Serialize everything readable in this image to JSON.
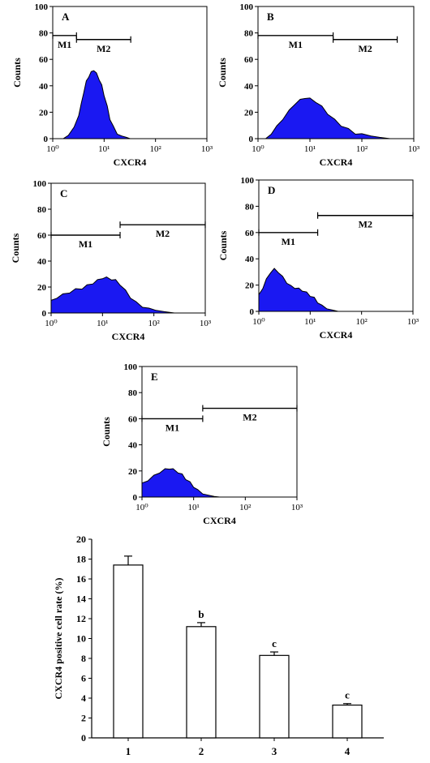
{
  "colors": {
    "fill": "#1a18f2",
    "outline": "#000000",
    "bar_fill": "#ffffff"
  },
  "chart_data": [
    {
      "type": "area",
      "panel_label": "A",
      "xlabel": "CXCR4",
      "ylabel": "Counts",
      "xscale": "log",
      "xlim": [
        1,
        1000
      ],
      "ylim": [
        0,
        100
      ],
      "x_tick_labels": [
        "10⁰",
        "10¹",
        "10²",
        "10³"
      ],
      "y_tick_labels": [
        "0",
        "20",
        "40",
        "60",
        "80",
        "100"
      ],
      "gates": [
        {
          "label": "M1",
          "start": 1,
          "end": 2.9,
          "y": 78
        },
        {
          "label": "M2",
          "start": 2.9,
          "end": 33,
          "y": 75
        }
      ],
      "histogram": [
        [
          1.6,
          0
        ],
        [
          2,
          3
        ],
        [
          2.6,
          8
        ],
        [
          3.2,
          18
        ],
        [
          3.6,
          26
        ],
        [
          4,
          35
        ],
        [
          4.5,
          43
        ],
        [
          5,
          47
        ],
        [
          5.6,
          50
        ],
        [
          6.3,
          52
        ],
        [
          7.1,
          49
        ],
        [
          8,
          45
        ],
        [
          9,
          40
        ],
        [
          10,
          33
        ],
        [
          11.5,
          24
        ],
        [
          13,
          15
        ],
        [
          15,
          9
        ],
        [
          18,
          4
        ],
        [
          22,
          2
        ],
        [
          27,
          1
        ],
        [
          32,
          0
        ]
      ]
    },
    {
      "type": "area",
      "panel_label": "B",
      "xlabel": "CXCR4",
      "ylabel": "Counts",
      "xscale": "log",
      "xlim": [
        1,
        1000
      ],
      "ylim": [
        0,
        100
      ],
      "x_tick_labels": [
        "10⁰",
        "10¹",
        "10²",
        "10³"
      ],
      "y_tick_labels": [
        "0",
        "20",
        "40",
        "60",
        "80",
        "100"
      ],
      "gates": [
        {
          "label": "M1",
          "start": 1,
          "end": 28,
          "y": 78
        },
        {
          "label": "M2",
          "start": 28,
          "end": 480,
          "y": 75
        }
      ],
      "histogram": [
        [
          1.4,
          0
        ],
        [
          1.8,
          4
        ],
        [
          2.3,
          9
        ],
        [
          3,
          15
        ],
        [
          4,
          21
        ],
        [
          5,
          26
        ],
        [
          6.5,
          29
        ],
        [
          8,
          31
        ],
        [
          10,
          30
        ],
        [
          13,
          28
        ],
        [
          17,
          24
        ],
        [
          22,
          19
        ],
        [
          30,
          14
        ],
        [
          40,
          10
        ],
        [
          55,
          7
        ],
        [
          75,
          4
        ],
        [
          100,
          3
        ],
        [
          150,
          2
        ],
        [
          220,
          1
        ],
        [
          350,
          0
        ]
      ]
    },
    {
      "type": "area",
      "panel_label": "C",
      "xlabel": "CXCR4",
      "ylabel": "Counts",
      "xscale": "log",
      "xlim": [
        1,
        1000
      ],
      "ylim": [
        0,
        100
      ],
      "x_tick_labels": [
        "10⁰",
        "10¹",
        "10²",
        "10³"
      ],
      "y_tick_labels": [
        "0",
        "20",
        "40",
        "60",
        "80",
        "100"
      ],
      "gates": [
        {
          "label": "M1",
          "start": 1,
          "end": 22,
          "y": 60
        },
        {
          "label": "M2",
          "start": 22,
          "end": 1000,
          "y": 68
        }
      ],
      "histogram": [
        [
          1,
          9
        ],
        [
          1.3,
          12
        ],
        [
          1.7,
          14
        ],
        [
          2.3,
          16
        ],
        [
          3,
          18
        ],
        [
          4,
          19
        ],
        [
          5,
          21
        ],
        [
          6.5,
          23
        ],
        [
          8,
          25
        ],
        [
          10,
          27
        ],
        [
          12,
          27
        ],
        [
          15,
          26
        ],
        [
          18,
          25
        ],
        [
          22,
          22
        ],
        [
          28,
          17
        ],
        [
          35,
          12
        ],
        [
          45,
          8
        ],
        [
          60,
          5
        ],
        [
          80,
          3
        ],
        [
          110,
          2
        ],
        [
          160,
          1
        ],
        [
          250,
          0
        ]
      ]
    },
    {
      "type": "area",
      "panel_label": "D",
      "xlabel": "CXCR4",
      "ylabel": "Counts",
      "xscale": "log",
      "xlim": [
        1,
        1000
      ],
      "ylim": [
        0,
        100
      ],
      "x_tick_labels": [
        "10⁰",
        "10¹",
        "10²",
        "10³"
      ],
      "y_tick_labels": [
        "0",
        "20",
        "40",
        "60",
        "80",
        "100"
      ],
      "gates": [
        {
          "label": "M1",
          "start": 1,
          "end": 14,
          "y": 60
        },
        {
          "label": "M2",
          "start": 14,
          "end": 1000,
          "y": 73
        }
      ],
      "histogram": [
        [
          1,
          12
        ],
        [
          1.2,
          18
        ],
        [
          1.4,
          24
        ],
        [
          1.7,
          30
        ],
        [
          2,
          32
        ],
        [
          2.4,
          30
        ],
        [
          2.9,
          26
        ],
        [
          3.5,
          22
        ],
        [
          4.2,
          19
        ],
        [
          5,
          18
        ],
        [
          6,
          17
        ],
        [
          7,
          16
        ],
        [
          8.5,
          14
        ],
        [
          10,
          12
        ],
        [
          12,
          10
        ],
        [
          14,
          7
        ],
        [
          17,
          4
        ],
        [
          21,
          2
        ],
        [
          27,
          1
        ],
        [
          35,
          0
        ]
      ]
    },
    {
      "type": "area",
      "panel_label": "E",
      "xlabel": "CXCR4",
      "ylabel": "Counts",
      "xscale": "log",
      "xlim": [
        1,
        1000
      ],
      "ylim": [
        0,
        100
      ],
      "x_tick_labels": [
        "10⁰",
        "10¹",
        "10²",
        "10³"
      ],
      "y_tick_labels": [
        "0",
        "20",
        "40",
        "60",
        "80",
        "100"
      ],
      "gates": [
        {
          "label": "M1",
          "start": 1,
          "end": 15,
          "y": 60
        },
        {
          "label": "M2",
          "start": 15,
          "end": 1000,
          "y": 68
        }
      ],
      "histogram": [
        [
          1,
          10
        ],
        [
          1.3,
          13
        ],
        [
          1.7,
          16
        ],
        [
          2.2,
          19
        ],
        [
          2.8,
          21
        ],
        [
          3.4,
          22
        ],
        [
          4,
          21
        ],
        [
          5,
          19
        ],
        [
          6,
          17
        ],
        [
          7,
          14
        ],
        [
          8.5,
          11
        ],
        [
          10,
          8
        ],
        [
          12,
          5
        ],
        [
          15,
          3
        ],
        [
          19,
          1.5
        ],
        [
          25,
          0.5
        ],
        [
          32,
          0
        ]
      ]
    },
    {
      "type": "bar",
      "ylabel": "CXCR4 positive cell rate (%)",
      "categories": [
        "1",
        "2",
        "3",
        "4"
      ],
      "values": [
        17.4,
        11.2,
        8.3,
        3.3
      ],
      "errors": [
        0.9,
        0.4,
        0.35,
        0.15
      ],
      "annotations": [
        "",
        "b",
        "c",
        "c"
      ],
      "ylim": [
        0,
        20
      ],
      "y_tick_labels": [
        "0",
        "2",
        "4",
        "6",
        "8",
        "10",
        "12",
        "14",
        "16",
        "18",
        "20"
      ]
    }
  ]
}
